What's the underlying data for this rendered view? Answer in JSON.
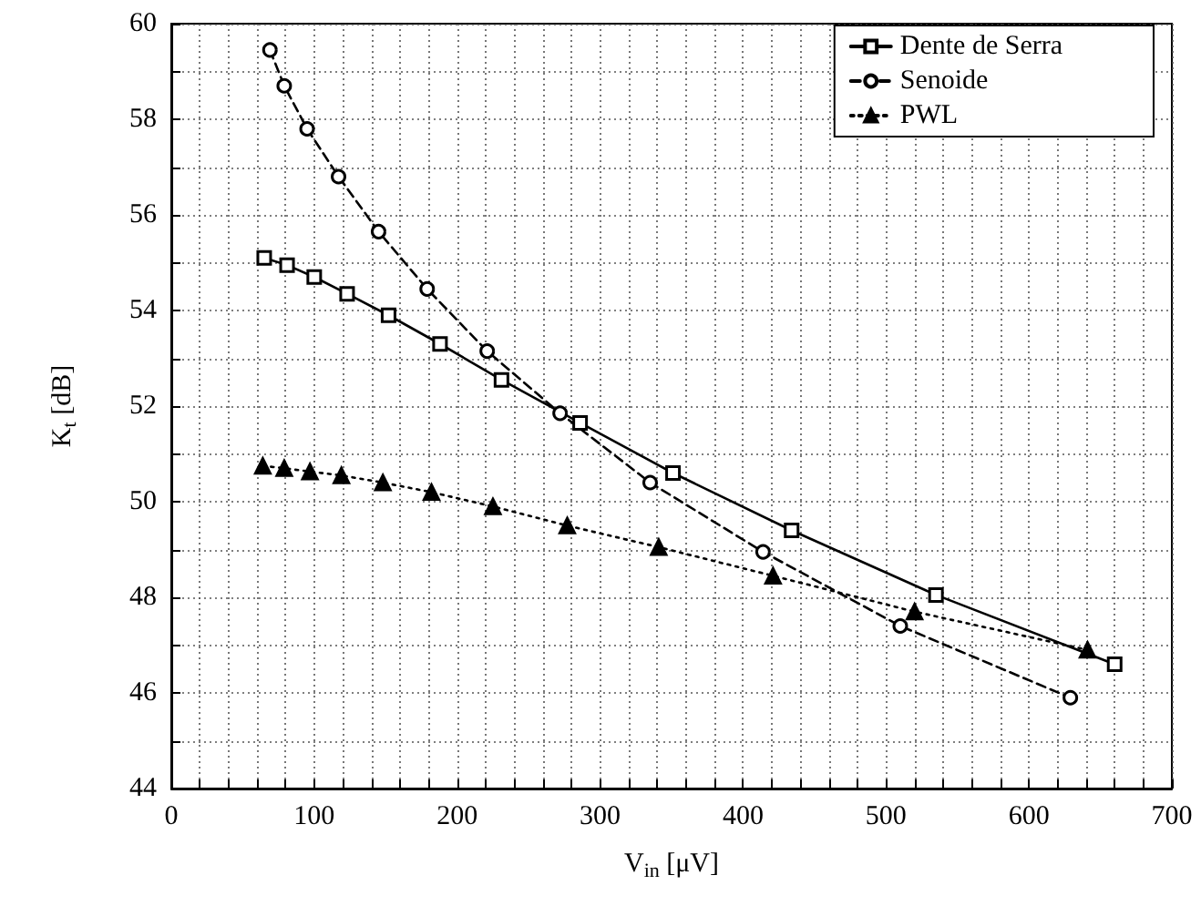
{
  "chart_data": {
    "type": "line",
    "xlabel": "V$_{in}$ [μV]",
    "ylabel": "K$_{t}$ [dB]",
    "xlim": [
      0,
      700
    ],
    "xticks": [
      0,
      {
        "value": 20,
        "label": null
      },
      {
        "value": 40,
        "label": null
      },
      {
        "value": 60,
        "label": null
      },
      {
        "value": 80,
        "label": null
      },
      100,
      {
        "value": 120,
        "label": null
      },
      {
        "value": 140,
        "label": null
      },
      {
        "value": 160,
        "label": null
      },
      {
        "value": 180,
        "label": null
      },
      200,
      {
        "value": 220,
        "label": null
      },
      {
        "value": 240,
        "label": null
      },
      {
        "value": 260,
        "label": null
      },
      {
        "value": 280,
        "label": null
      },
      300,
      {
        "value": 320,
        "label": null
      },
      {
        "value": 340,
        "label": null
      },
      {
        "value": 360,
        "label": null
      },
      {
        "value": 380,
        "label": null
      },
      400,
      {
        "value": 420,
        "label": null
      },
      {
        "value": 440,
        "label": null
      },
      {
        "value": 460,
        "label": null
      },
      {
        "value": 480,
        "label": null
      },
      500,
      {
        "value": 520,
        "label": null
      },
      {
        "value": 540,
        "label": null
      },
      {
        "value": 560,
        "label": null
      },
      {
        "value": 580,
        "label": null
      },
      600,
      {
        "value": 620,
        "label": null
      },
      {
        "value": 640,
        "label": null
      },
      {
        "value": 660,
        "label": null
      },
      {
        "value": 680,
        "label": null
      },
      700
    ],
    "ylim": [
      44,
      60
    ],
    "yticks": [
      44,
      {
        "value": 45,
        "label": null
      },
      46,
      {
        "value": 47,
        "label": null
      },
      48,
      {
        "value": 49,
        "label": null
      },
      50,
      {
        "value": 51,
        "label": null
      },
      52,
      {
        "value": 53,
        "label": null
      },
      54,
      {
        "value": 55,
        "label": null
      },
      56,
      {
        "value": 57,
        "label": null
      },
      58,
      {
        "value": 59,
        "label": null
      },
      60
    ],
    "grid": true,
    "legend": "top right",
    "series": [
      {
        "name": "Dente de Serra",
        "color": "#000000",
        "marker": "square",
        "line_style": "solid",
        "x": [
          65,
          81,
          100,
          123,
          152,
          188,
          231,
          286,
          351,
          434,
          535,
          660
        ],
        "values": [
          55.1,
          54.95,
          54.7,
          54.35,
          53.9,
          53.3,
          52.55,
          51.65,
          50.6,
          49.4,
          48.05,
          46.6
        ]
      },
      {
        "name": "Senoide",
        "color": "#000000",
        "marker": "circle",
        "line_style": "dashed",
        "x": [
          69,
          79,
          95,
          117,
          145,
          179,
          221,
          272,
          335,
          414,
          510,
          629
        ],
        "values": [
          59.45,
          58.7,
          57.8,
          56.8,
          55.65,
          54.45,
          53.15,
          51.85,
          50.4,
          48.95,
          47.4,
          45.9
        ]
      },
      {
        "name": "PWL",
        "color": "#000000",
        "marker": "triangle",
        "line_style": "dotted",
        "x": [
          64,
          79,
          97,
          119,
          148,
          182,
          225,
          277,
          341,
          421,
          520,
          641
        ],
        "values": [
          50.75,
          50.7,
          50.63,
          50.55,
          50.4,
          50.2,
          49.9,
          49.5,
          49.05,
          48.45,
          47.7,
          46.9
        ]
      }
    ]
  }
}
